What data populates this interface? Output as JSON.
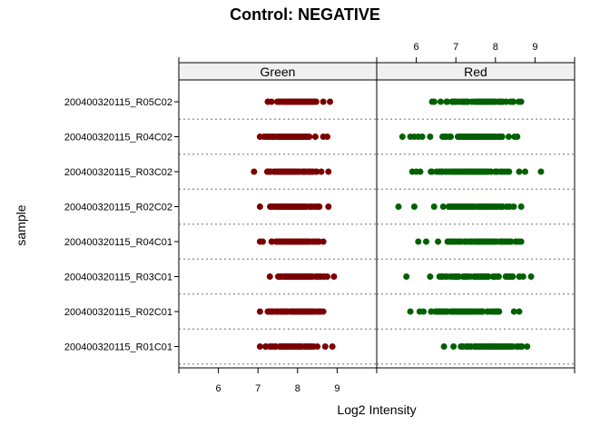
{
  "chart_data": {
    "type": "scatter",
    "title": "Control: NEGATIVE",
    "xlabel": "Log2 Intensity",
    "ylabel": "sample",
    "xlim": [
      5.0,
      10.0
    ],
    "xticks": [
      6,
      7,
      8,
      9
    ],
    "xtick_labels": [
      "6",
      "7",
      "8",
      "9"
    ],
    "panels": [
      "Green",
      "Red"
    ],
    "categories": [
      "200400320115_R05C02",
      "200400320115_R04C02",
      "200400320115_R03C02",
      "200400320115_R02C02",
      "200400320115_R04C01",
      "200400320115_R03C01",
      "200400320115_R02C01",
      "200400320115_R01C01"
    ],
    "grid": "dotted horizontal separators between samples",
    "series": [
      {
        "panel": "Green",
        "color": "#7a0000",
        "ranges": [
          {
            "sample": "200400320115_R05C02",
            "min": 7.25,
            "max": 8.65,
            "outliers": [
              8.82
            ]
          },
          {
            "sample": "200400320115_R04C02",
            "min": 7.05,
            "max": 8.45,
            "outliers": [
              8.65,
              8.75
            ]
          },
          {
            "sample": "200400320115_R03C02",
            "min": 6.9,
            "max": 8.6,
            "outliers": [
              8.78
            ]
          },
          {
            "sample": "200400320115_R02C02",
            "min": 7.05,
            "max": 8.55,
            "outliers": [
              8.78
            ]
          },
          {
            "sample": "200400320115_R04C01",
            "min": 7.05,
            "max": 8.65,
            "outliers": []
          },
          {
            "sample": "200400320115_R03C01",
            "min": 7.3,
            "max": 8.75,
            "outliers": [
              8.92
            ]
          },
          {
            "sample": "200400320115_R02C01",
            "min": 7.05,
            "max": 8.65,
            "outliers": []
          },
          {
            "sample": "200400320115_R01C01",
            "min": 7.05,
            "max": 8.5,
            "outliers": [
              8.7,
              8.88
            ]
          }
        ]
      },
      {
        "panel": "Red",
        "color": "#006000",
        "ranges": [
          {
            "sample": "200400320115_R05C02",
            "min": 6.4,
            "max": 8.65,
            "outliers": []
          },
          {
            "sample": "200400320115_R04C02",
            "min": 6.35,
            "max": 8.55,
            "outliers": [
              5.65,
              5.85,
              5.95,
              6.05,
              6.15
            ]
          },
          {
            "sample": "200400320115_R03C02",
            "min": 6.1,
            "max": 8.6,
            "outliers": [
              5.9,
              6.0,
              8.75,
              9.15
            ]
          },
          {
            "sample": "200400320115_R02C02",
            "min": 6.45,
            "max": 8.65,
            "outliers": [
              5.55,
              5.95
            ]
          },
          {
            "sample": "200400320115_R04C01",
            "min": 6.55,
            "max": 8.65,
            "outliers": [
              6.05,
              6.25
            ]
          },
          {
            "sample": "200400320115_R03C01",
            "min": 6.35,
            "max": 8.7,
            "outliers": [
              5.75,
              8.9
            ]
          },
          {
            "sample": "200400320115_R02C01",
            "min": 5.85,
            "max": 8.6,
            "outliers": []
          },
          {
            "sample": "200400320115_R01C01",
            "min": 6.7,
            "max": 8.8,
            "outliers": []
          }
        ]
      }
    ]
  }
}
